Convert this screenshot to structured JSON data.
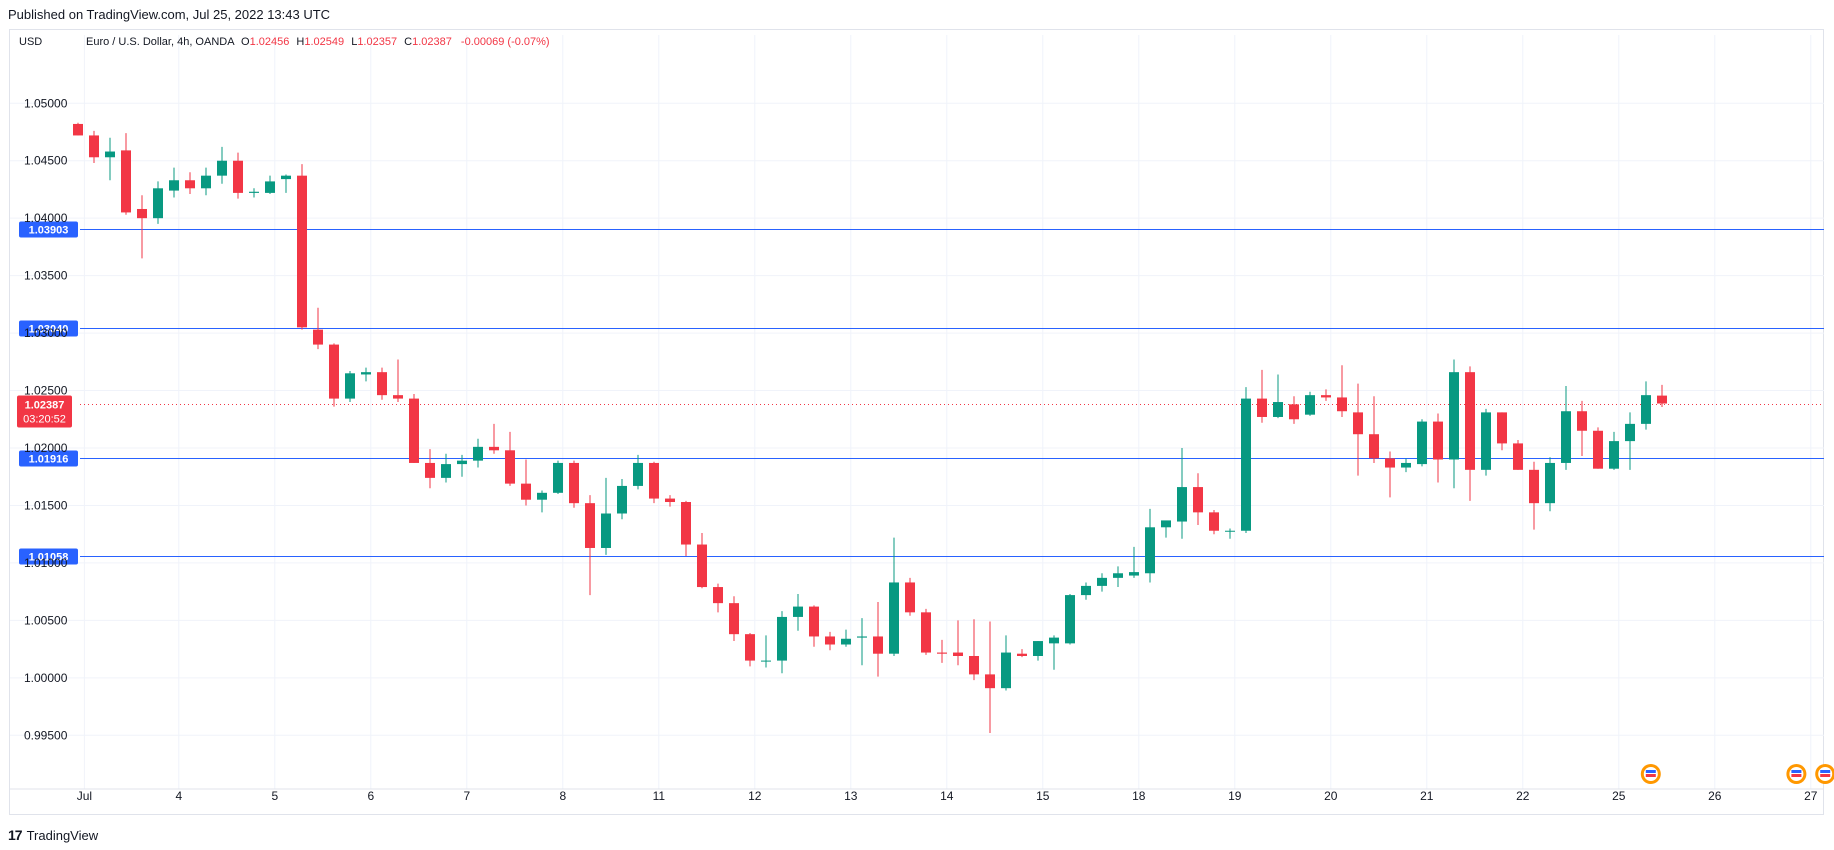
{
  "caption": "Published on TradingView.com, Jul 25, 2022 13:43 UTC",
  "footer": {
    "logo_mark": "17",
    "logo_text": "TradingView"
  },
  "legend": {
    "currency": "USD",
    "symbol": "Euro / U.S. Dollar, 4h, OANDA",
    "o_label": "O",
    "o_value": "1.02456",
    "h_label": "H",
    "h_value": "1.02549",
    "l_label": "L",
    "l_value": "1.02357",
    "c_label": "C",
    "c_value": "1.02387",
    "change": "-0.00069 (-0.07%)"
  },
  "colors": {
    "up": "#089981",
    "down": "#f23645",
    "level_line": "#2962ff",
    "level_badge": "#2962ff",
    "last_price": "#f23645",
    "grid": "#f0f3fa"
  },
  "chart_data": {
    "type": "candlestick",
    "ylim": [
      0.9905,
      1.0542
    ],
    "y_ticks": [
      "1.05000",
      "1.04500",
      "1.04000",
      "1.03500",
      "1.03000",
      "1.02500",
      "1.02000",
      "1.01500",
      "1.01000",
      "1.00500",
      "1.00000",
      "0.99500"
    ],
    "y_tick_values": [
      1.05,
      1.045,
      1.04,
      1.035,
      1.03,
      1.025,
      1.02,
      1.015,
      1.01,
      1.005,
      1.0,
      0.995
    ],
    "x_ticks": [
      {
        "label": "Jul",
        "index": 0.4
      },
      {
        "label": "4",
        "index": 6.3
      },
      {
        "label": "5",
        "index": 12.3
      },
      {
        "label": "6",
        "index": 18.3
      },
      {
        "label": "7",
        "index": 24.3
      },
      {
        "label": "8",
        "index": 30.3
      },
      {
        "label": "11",
        "index": 36.3
      },
      {
        "label": "12",
        "index": 42.3
      },
      {
        "label": "13",
        "index": 48.3
      },
      {
        "label": "14",
        "index": 54.3
      },
      {
        "label": "15",
        "index": 60.3
      },
      {
        "label": "18",
        "index": 66.3
      },
      {
        "label": "19",
        "index": 72.3
      },
      {
        "label": "20",
        "index": 78.3
      },
      {
        "label": "21",
        "index": 84.3
      },
      {
        "label": "22",
        "index": 90.3
      },
      {
        "label": "25",
        "index": 96.3
      },
      {
        "label": "26",
        "index": 102.3
      },
      {
        "label": "27",
        "index": 108.3
      }
    ],
    "horizontal_levels": [
      {
        "label": "1.03903",
        "value": 1.03903
      },
      {
        "label": "1.03040",
        "value": 1.0304
      },
      {
        "label": "1.01916",
        "value": 1.01916
      },
      {
        "label": "1.01058",
        "value": 1.01058
      }
    ],
    "last_price": {
      "value": 1.02387,
      "label": "1.02387",
      "countdown": "03:20:52"
    },
    "candles": [
      {
        "o": 1.0482,
        "h": 1.0483,
        "l": 1.0472,
        "c": 1.0472
      },
      {
        "o": 1.0472,
        "h": 1.0476,
        "l": 1.0448,
        "c": 1.0453
      },
      {
        "o": 1.0453,
        "h": 1.047,
        "l": 1.0433,
        "c": 1.0458
      },
      {
        "o": 1.0459,
        "h": 1.0474,
        "l": 1.0403,
        "c": 1.0405
      },
      {
        "o": 1.0408,
        "h": 1.042,
        "l": 1.0365,
        "c": 1.04
      },
      {
        "o": 1.04,
        "h": 1.0432,
        "l": 1.0395,
        "c": 1.0426
      },
      {
        "o": 1.0424,
        "h": 1.0444,
        "l": 1.0418,
        "c": 1.0433
      },
      {
        "o": 1.0433,
        "h": 1.044,
        "l": 1.0421,
        "c": 1.0426
      },
      {
        "o": 1.0426,
        "h": 1.0444,
        "l": 1.042,
        "c": 1.0437
      },
      {
        "o": 1.0437,
        "h": 1.0462,
        "l": 1.043,
        "c": 1.045
      },
      {
        "o": 1.045,
        "h": 1.0457,
        "l": 1.0417,
        "c": 1.0422
      },
      {
        "o": 1.0422,
        "h": 1.0426,
        "l": 1.0418,
        "c": 1.0423
      },
      {
        "o": 1.0422,
        "h": 1.0437,
        "l": 1.0421,
        "c": 1.0432
      },
      {
        "o": 1.0434,
        "h": 1.0438,
        "l": 1.0422,
        "c": 1.0437
      },
      {
        "o": 1.0437,
        "h": 1.0447,
        "l": 1.0303,
        "c": 1.0305
      },
      {
        "o": 1.0303,
        "h": 1.0322,
        "l": 1.0286,
        "c": 1.029
      },
      {
        "o": 1.029,
        "h": 1.0291,
        "l": 1.0236,
        "c": 1.0243
      },
      {
        "o": 1.0243,
        "h": 1.0267,
        "l": 1.024,
        "c": 1.0265
      },
      {
        "o": 1.0264,
        "h": 1.027,
        "l": 1.0258,
        "c": 1.0266
      },
      {
        "o": 1.0266,
        "h": 1.027,
        "l": 1.0242,
        "c": 1.0246
      },
      {
        "o": 1.0246,
        "h": 1.0277,
        "l": 1.024,
        "c": 1.0243
      },
      {
        "o": 1.0243,
        "h": 1.0247,
        "l": 1.0187,
        "c": 1.0187
      },
      {
        "o": 1.0187,
        "h": 1.0199,
        "l": 1.0165,
        "c": 1.0174
      },
      {
        "o": 1.0174,
        "h": 1.0195,
        "l": 1.017,
        "c": 1.0186
      },
      {
        "o": 1.0186,
        "h": 1.0194,
        "l": 1.0175,
        "c": 1.0189
      },
      {
        "o": 1.0189,
        "h": 1.0208,
        "l": 1.0183,
        "c": 1.0201
      },
      {
        "o": 1.0201,
        "h": 1.0221,
        "l": 1.0195,
        "c": 1.0198
      },
      {
        "o": 1.0198,
        "h": 1.0214,
        "l": 1.0167,
        "c": 1.0169
      },
      {
        "o": 1.0169,
        "h": 1.019,
        "l": 1.015,
        "c": 1.0155
      },
      {
        "o": 1.0155,
        "h": 1.0163,
        "l": 1.0144,
        "c": 1.0161
      },
      {
        "o": 1.0161,
        "h": 1.0189,
        "l": 1.016,
        "c": 1.0187
      },
      {
        "o": 1.0187,
        "h": 1.0189,
        "l": 1.0148,
        "c": 1.0152
      },
      {
        "o": 1.0152,
        "h": 1.0159,
        "l": 1.0072,
        "c": 1.0113
      },
      {
        "o": 1.0113,
        "h": 1.0174,
        "l": 1.0107,
        "c": 1.0143
      },
      {
        "o": 1.0143,
        "h": 1.0173,
        "l": 1.0138,
        "c": 1.0167
      },
      {
        "o": 1.0167,
        "h": 1.0194,
        "l": 1.0164,
        "c": 1.0187
      },
      {
        "o": 1.0187,
        "h": 1.0188,
        "l": 1.0152,
        "c": 1.0156
      },
      {
        "o": 1.0156,
        "h": 1.0159,
        "l": 1.0149,
        "c": 1.0153
      },
      {
        "o": 1.0153,
        "h": 1.0154,
        "l": 1.0106,
        "c": 1.0116
      },
      {
        "o": 1.0116,
        "h": 1.0126,
        "l": 1.0078,
        "c": 1.0079
      },
      {
        "o": 1.0079,
        "h": 1.0082,
        "l": 1.0057,
        "c": 1.0065
      },
      {
        "o": 1.0065,
        "h": 1.0071,
        "l": 1.0032,
        "c": 1.0038
      },
      {
        "o": 1.0038,
        "h": 1.0039,
        "l": 1.001,
        "c": 1.0015
      },
      {
        "o": 1.0015,
        "h": 1.0037,
        "l": 1.0009,
        "c": 1.0015
      },
      {
        "o": 1.0015,
        "h": 1.0058,
        "l": 1.0004,
        "c": 1.0053
      },
      {
        "o": 1.0053,
        "h": 1.0073,
        "l": 1.0041,
        "c": 1.0062
      },
      {
        "o": 1.0062,
        "h": 1.0063,
        "l": 1.0027,
        "c": 1.0036
      },
      {
        "o": 1.0036,
        "h": 1.004,
        "l": 1.0024,
        "c": 1.0029
      },
      {
        "o": 1.0029,
        "h": 1.0042,
        "l": 1.0027,
        "c": 1.0034
      },
      {
        "o": 1.0035,
        "h": 1.0052,
        "l": 1.0011,
        "c": 1.0036
      },
      {
        "o": 1.0036,
        "h": 1.0066,
        "l": 1.0001,
        "c": 1.0021
      },
      {
        "o": 1.0021,
        "h": 1.0122,
        "l": 1.0019,
        "c": 1.0083
      },
      {
        "o": 1.0083,
        "h": 1.0087,
        "l": 1.0054,
        "c": 1.0057
      },
      {
        "o": 1.0057,
        "h": 1.006,
        "l": 1.002,
        "c": 1.0022
      },
      {
        "o": 1.0022,
        "h": 1.0033,
        "l": 1.0013,
        "c": 1.0021
      },
      {
        "o": 1.0022,
        "h": 1.005,
        "l": 1.0011,
        "c": 1.0019
      },
      {
        "o": 1.0019,
        "h": 1.0051,
        "l": 0.9998,
        "c": 1.0003
      },
      {
        "o": 1.0003,
        "h": 1.0049,
        "l": 0.9952,
        "c": 0.9991
      },
      {
        "o": 0.9991,
        "h": 1.0037,
        "l": 0.9989,
        "c": 1.0022
      },
      {
        "o": 1.0021,
        "h": 1.0025,
        "l": 1.0018,
        "c": 1.0019
      },
      {
        "o": 1.0019,
        "h": 1.0032,
        "l": 1.0015,
        "c": 1.0032
      },
      {
        "o": 1.003,
        "h": 1.0037,
        "l": 1.0007,
        "c": 1.0035
      },
      {
        "o": 1.003,
        "h": 1.0073,
        "l": 1.0029,
        "c": 1.0072
      },
      {
        "o": 1.0072,
        "h": 1.0083,
        "l": 1.0068,
        "c": 1.008
      },
      {
        "o": 1.008,
        "h": 1.0091,
        "l": 1.0075,
        "c": 1.0087
      },
      {
        "o": 1.0087,
        "h": 1.0097,
        "l": 1.0079,
        "c": 1.0091
      },
      {
        "o": 1.0089,
        "h": 1.0114,
        "l": 1.0087,
        "c": 1.0092
      },
      {
        "o": 1.0091,
        "h": 1.0147,
        "l": 1.0083,
        "c": 1.0131
      },
      {
        "o": 1.0131,
        "h": 1.0135,
        "l": 1.0122,
        "c": 1.0137
      },
      {
        "o": 1.0136,
        "h": 1.02,
        "l": 1.0121,
        "c": 1.0166
      },
      {
        "o": 1.0166,
        "h": 1.0178,
        "l": 1.0133,
        "c": 1.0144
      },
      {
        "o": 1.0144,
        "h": 1.0146,
        "l": 1.0125,
        "c": 1.0128
      },
      {
        "o": 1.0128,
        "h": 1.013,
        "l": 1.0121,
        "c": 1.0128
      },
      {
        "o": 1.0128,
        "h": 1.0253,
        "l": 1.0126,
        "c": 1.0243
      },
      {
        "o": 1.0243,
        "h": 1.0268,
        "l": 1.0222,
        "c": 1.0227
      },
      {
        "o": 1.0227,
        "h": 1.0264,
        "l": 1.0226,
        "c": 1.024
      },
      {
        "o": 1.0238,
        "h": 1.0245,
        "l": 1.0221,
        "c": 1.0225
      },
      {
        "o": 1.0229,
        "h": 1.0249,
        "l": 1.0228,
        "c": 1.0246
      },
      {
        "o": 1.0246,
        "h": 1.0251,
        "l": 1.0241,
        "c": 1.0244
      },
      {
        "o": 1.0244,
        "h": 1.0272,
        "l": 1.0227,
        "c": 1.0232
      },
      {
        "o": 1.0231,
        "h": 1.0256,
        "l": 1.0176,
        "c": 1.0212
      },
      {
        "o": 1.0212,
        "h": 1.0245,
        "l": 1.0187,
        "c": 1.0191
      },
      {
        "o": 1.0191,
        "h": 1.0197,
        "l": 1.0157,
        "c": 1.0183
      },
      {
        "o": 1.0183,
        "h": 1.0191,
        "l": 1.0179,
        "c": 1.0187
      },
      {
        "o": 1.0186,
        "h": 1.0225,
        "l": 1.0184,
        "c": 1.0223
      },
      {
        "o": 1.0223,
        "h": 1.023,
        "l": 1.017,
        "c": 1.019
      },
      {
        "o": 1.019,
        "h": 1.0277,
        "l": 1.0165,
        "c": 1.0266
      },
      {
        "o": 1.0266,
        "h": 1.0271,
        "l": 1.0154,
        "c": 1.0181
      },
      {
        "o": 1.0181,
        "h": 1.0234,
        "l": 1.0176,
        "c": 1.0231
      },
      {
        "o": 1.0231,
        "h": 1.0231,
        "l": 1.0198,
        "c": 1.0204
      },
      {
        "o": 1.0204,
        "h": 1.0207,
        "l": 1.0181,
        "c": 1.0181
      },
      {
        "o": 1.0181,
        "h": 1.0188,
        "l": 1.0129,
        "c": 1.0152
      },
      {
        "o": 1.0152,
        "h": 1.0192,
        "l": 1.0145,
        "c": 1.0187
      },
      {
        "o": 1.0187,
        "h": 1.0254,
        "l": 1.0181,
        "c": 1.0232
      },
      {
        "o": 1.0232,
        "h": 1.0241,
        "l": 1.0193,
        "c": 1.0215
      },
      {
        "o": 1.0215,
        "h": 1.0218,
        "l": 1.0182,
        "c": 1.0182
      },
      {
        "o": 1.0182,
        "h": 1.0214,
        "l": 1.0181,
        "c": 1.0206
      },
      {
        "o": 1.0206,
        "h": 1.0231,
        "l": 1.0181,
        "c": 1.0221
      },
      {
        "o": 1.0221,
        "h": 1.0258,
        "l": 1.0216,
        "c": 1.0246
      },
      {
        "o": 1.02456,
        "h": 1.02549,
        "l": 1.02357,
        "c": 1.02387
      }
    ],
    "event_markers": [
      {
        "index": 98.3,
        "name": "us-eu-flag-icon"
      },
      {
        "index": 107.4,
        "name": "us-eu-flag-icon"
      },
      {
        "index": 109.2,
        "name": "us-eu-flag-icon"
      }
    ]
  }
}
